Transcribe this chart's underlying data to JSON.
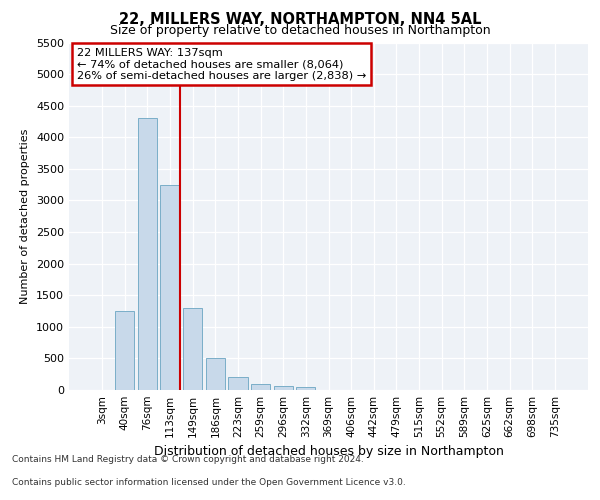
{
  "title": "22, MILLERS WAY, NORTHAMPTON, NN4 5AL",
  "subtitle": "Size of property relative to detached houses in Northampton",
  "xlabel": "Distribution of detached houses by size in Northampton",
  "ylabel": "Number of detached properties",
  "bar_categories": [
    "3sqm",
    "40sqm",
    "76sqm",
    "113sqm",
    "149sqm",
    "186sqm",
    "223sqm",
    "259sqm",
    "296sqm",
    "332sqm",
    "369sqm",
    "406sqm",
    "442sqm",
    "479sqm",
    "515sqm",
    "552sqm",
    "589sqm",
    "625sqm",
    "662sqm",
    "698sqm",
    "735sqm"
  ],
  "bar_values": [
    0,
    1250,
    4300,
    3250,
    1300,
    500,
    200,
    100,
    70,
    50,
    0,
    0,
    0,
    0,
    0,
    0,
    0,
    0,
    0,
    0,
    0
  ],
  "bar_color": "#c8d9ea",
  "bar_edgecolor": "#7aaec8",
  "vline_color": "#cc0000",
  "vline_pos": 3.43,
  "annotation_text": "22 MILLERS WAY: 137sqm\n← 74% of detached houses are smaller (8,064)\n26% of semi-detached houses are larger (2,838) →",
  "annotation_box_edgecolor": "#cc0000",
  "annotation_box_facecolor": "#ffffff",
  "ylim": [
    0,
    5500
  ],
  "yticks": [
    0,
    500,
    1000,
    1500,
    2000,
    2500,
    3000,
    3500,
    4000,
    4500,
    5000,
    5500
  ],
  "background_color": "#eef2f7",
  "grid_color": "#ffffff",
  "footer_line1": "Contains HM Land Registry data © Crown copyright and database right 2024.",
  "footer_line2": "Contains public sector information licensed under the Open Government Licence v3.0."
}
